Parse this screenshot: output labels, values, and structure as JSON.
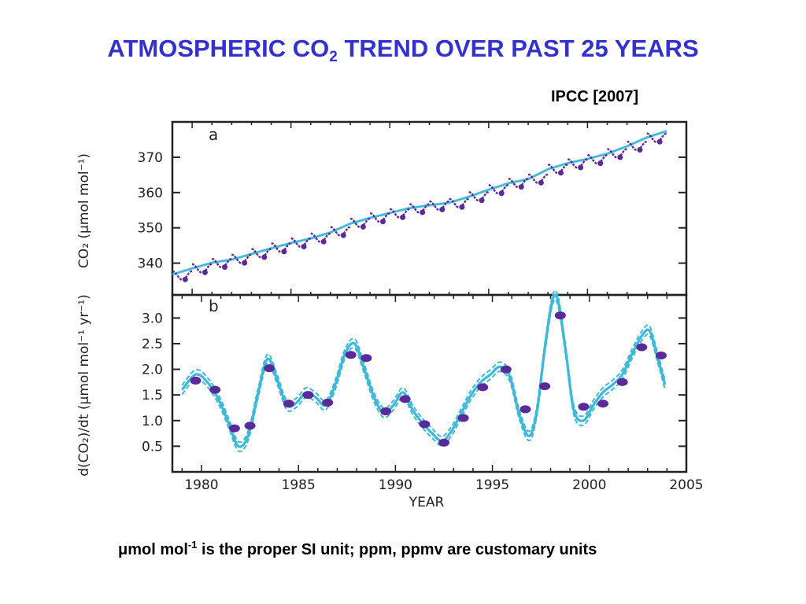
{
  "title": {
    "main_before": "ATMOSPHERIC CO",
    "sub": "2",
    "main_after": " TREND OVER PAST 25 YEARS"
  },
  "source": "IPCC [2007]",
  "caption": {
    "unit_prefix": "μmol mol",
    "unit_sup": "-1",
    "text": "  is the proper SI unit; ppm, ppmv are customary units"
  },
  "colors": {
    "title": "#3333cc",
    "trend_line": "#3fb8d8",
    "data_points": "#5a2a99",
    "axis": "#222222"
  },
  "chart_data": [
    {
      "panel": "a",
      "type": "line",
      "ylabel": "CO₂ (μmol mol⁻¹)",
      "xlim": [
        1979,
        2005
      ],
      "ylim": [
        331,
        380
      ],
      "yticks": [
        "340",
        "350",
        "360",
        "370"
      ],
      "series": [
        {
          "kind": "trend",
          "x": [
            1979,
            1980,
            1981,
            1982,
            1983,
            1984,
            1985,
            1986,
            1987,
            1988,
            1989,
            1990,
            1991,
            1992,
            1993,
            1994,
            1995,
            1996,
            1997,
            1998,
            1999,
            2000,
            2001,
            2002,
            2003,
            2004
          ],
          "values": [
            336.8,
            338.5,
            340.1,
            341.0,
            342.6,
            344.2,
            345.7,
            347.0,
            348.7,
            351.2,
            352.8,
            354.2,
            355.6,
            356.4,
            357.1,
            358.8,
            360.8,
            362.6,
            363.8,
            366.6,
            368.3,
            369.5,
            371.0,
            373.1,
            375.6,
            377.4
          ]
        },
        {
          "kind": "seasonal-observations",
          "x": [
            1979.5,
            1980.5,
            1981.5,
            1982.5,
            1983.5,
            1984.5,
            1985.5,
            1986.5,
            1987.5,
            1988.5,
            1989.5,
            1990.5,
            1991.5,
            1992.5,
            1993.5,
            1994.5,
            1995.5,
            1996.5,
            1997.5,
            1998.5,
            1999.5,
            2000.5,
            2001.5,
            2002.5,
            2003.5
          ],
          "values": [
            336.5,
            338.5,
            340.0,
            341.2,
            342.8,
            344.4,
            345.8,
            347.2,
            349.0,
            351.4,
            352.9,
            354.1,
            355.5,
            356.3,
            357.0,
            358.9,
            360.9,
            362.7,
            363.9,
            366.7,
            368.2,
            369.4,
            371.1,
            373.2,
            375.5
          ],
          "seasonal_amplitude": 1.4
        }
      ]
    },
    {
      "panel": "b",
      "type": "line",
      "xlabel": "YEAR",
      "ylabel": "d(CO₂)/dt (μmol mol⁻¹ yr⁻¹)",
      "xlim": [
        1978.5,
        2005
      ],
      "ylim": [
        0.0,
        3.45
      ],
      "xticks": [
        "1980",
        "1985",
        "1990",
        "1995",
        "2000",
        "2005"
      ],
      "yticks": [
        "0.5",
        "1.0",
        "1.5",
        "2.0",
        "2.5",
        "3.0"
      ],
      "series": [
        {
          "kind": "growth-rate-curve",
          "x": [
            1979.0,
            1979.7,
            1980.3,
            1980.9,
            1981.4,
            1981.9,
            1982.4,
            1982.9,
            1983.4,
            1983.9,
            1984.4,
            1984.9,
            1985.4,
            1985.9,
            1986.4,
            1986.9,
            1987.4,
            1987.9,
            1988.4,
            1988.9,
            1989.4,
            1989.9,
            1990.4,
            1990.9,
            1991.4,
            1991.9,
            1992.4,
            1992.9,
            1993.4,
            1993.9,
            1994.4,
            1994.9,
            1995.4,
            1995.9,
            1996.4,
            1996.9,
            1997.3,
            1997.7,
            1998.1,
            1998.4,
            1998.8,
            1999.2,
            1999.7,
            2000.2,
            2000.7,
            2001.2,
            2001.7,
            2002.2,
            2002.7,
            2003.1,
            2003.5,
            2003.9
          ],
          "values": [
            1.6,
            1.9,
            1.75,
            1.4,
            0.95,
            0.5,
            0.7,
            1.5,
            2.2,
            1.8,
            1.3,
            1.35,
            1.55,
            1.45,
            1.3,
            1.7,
            2.3,
            2.5,
            2.0,
            1.45,
            1.15,
            1.3,
            1.55,
            1.2,
            0.95,
            0.75,
            0.6,
            0.8,
            1.15,
            1.5,
            1.75,
            1.9,
            2.05,
            1.85,
            1.1,
            0.7,
            1.2,
            2.4,
            3.35,
            3.3,
            2.3,
            1.2,
            1.0,
            1.3,
            1.55,
            1.7,
            1.9,
            2.3,
            2.65,
            2.75,
            2.25,
            1.7
          ]
        },
        {
          "kind": "annual-rates",
          "x": [
            1979.7,
            1980.7,
            1981.7,
            1982.5,
            1983.5,
            1984.5,
            1985.5,
            1986.5,
            1987.7,
            1988.5,
            1989.5,
            1990.5,
            1991.5,
            1992.5,
            1993.5,
            1994.5,
            1995.7,
            1996.7,
            1997.7,
            1998.5,
            1999.7,
            2000.7,
            2001.7,
            2002.7,
            2003.7
          ],
          "values": [
            1.78,
            1.6,
            0.85,
            0.9,
            2.02,
            1.33,
            1.5,
            1.35,
            2.28,
            2.22,
            1.18,
            1.42,
            0.93,
            0.57,
            1.05,
            1.65,
            2.0,
            1.22,
            1.67,
            3.05,
            1.27,
            1.33,
            1.75,
            2.43,
            2.27
          ]
        }
      ]
    }
  ]
}
